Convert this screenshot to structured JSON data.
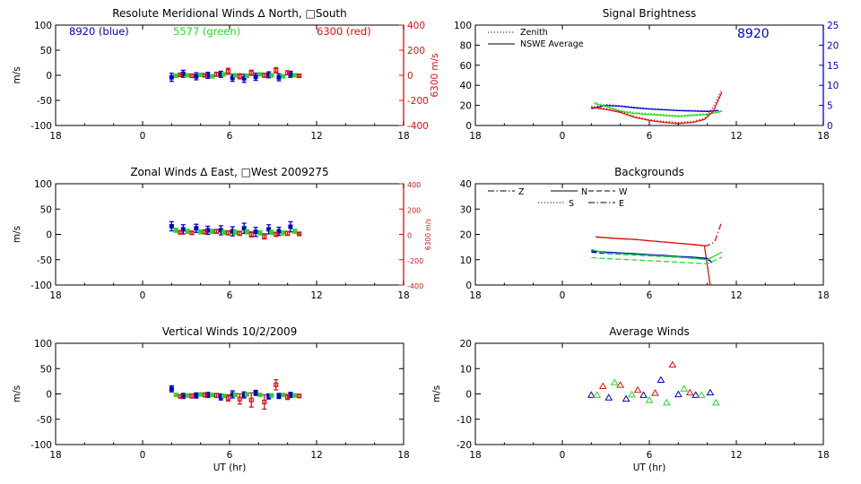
{
  "colors": {
    "blue": "#0000cc",
    "green": "#22dd22",
    "red": "#dd1111",
    "black": "#000000"
  },
  "chart_data": [
    {
      "id": "meridional",
      "type": "scatter",
      "title": "Resolute Meridional Winds ∆ North, □South",
      "ylabel": "m/s",
      "ylabel_right": "6300 m/s",
      "xlim": [
        18,
        42
      ],
      "ylim": [
        -100,
        100
      ],
      "ylim_right": [
        -400,
        400
      ],
      "x_ticks": [
        "18",
        "0",
        "6",
        "12",
        "18"
      ],
      "y_ticks": [
        "100",
        "50",
        "0",
        "-50",
        "-100"
      ],
      "y_ticks_right": [
        "400",
        "200",
        "0",
        "-200",
        "-400"
      ],
      "legend": {
        "blue": "8920 (blue)",
        "green": "5577 (green)",
        "red": "6300 (red)"
      },
      "series": [
        {
          "color": "blue",
          "x": [
            26.0,
            26.8,
            27.7,
            28.5,
            29.4,
            30.2,
            31.0,
            31.8,
            32.7,
            33.4,
            34.2
          ],
          "y": [
            -4,
            3,
            -2,
            0,
            2,
            -5,
            -6,
            -3,
            1,
            -4,
            2
          ],
          "err": [
            8,
            7,
            7,
            6,
            6,
            7,
            8,
            7,
            6,
            7,
            6
          ]
        },
        {
          "color": "green",
          "x": [
            26.3,
            27.1,
            28.0,
            28.8,
            29.6,
            30.4,
            31.2,
            32.1,
            32.9,
            33.7,
            34.5
          ],
          "y": [
            -1,
            0,
            1,
            -2,
            2,
            0,
            -1,
            2,
            0,
            -2,
            0
          ],
          "err": [
            3,
            3,
            3,
            3,
            3,
            3,
            3,
            3,
            3,
            3,
            3
          ]
        },
        {
          "color": "red",
          "x": [
            26.6,
            27.4,
            28.3,
            29.1,
            29.9,
            30.7,
            31.5,
            32.4,
            33.2,
            34.0,
            34.8
          ],
          "y": [
            1,
            -1,
            0,
            2,
            8,
            -2,
            5,
            0,
            10,
            5,
            -1
          ],
          "err": [
            3,
            3,
            3,
            4,
            6,
            5,
            5,
            4,
            5,
            4,
            2
          ]
        }
      ]
    },
    {
      "id": "zonal",
      "type": "scatter",
      "title": "Zonal Winds ∆ East, □West 2009275",
      "ylabel": "m/s",
      "ylabel_right": "6300 m/s",
      "xlim": [
        18,
        42
      ],
      "ylim": [
        -100,
        100
      ],
      "ylim_right": [
        -400,
        400
      ],
      "x_ticks": [
        "18",
        "0",
        "6",
        "12",
        "18"
      ],
      "y_ticks": [
        "100",
        "50",
        "0",
        "-50",
        "-100"
      ],
      "y_ticks_right": [
        "400",
        "200",
        "0",
        "-200",
        "-400"
      ],
      "series": [
        {
          "color": "blue",
          "x": [
            26.0,
            26.8,
            27.7,
            28.5,
            29.4,
            30.2,
            31.0,
            31.8,
            32.7,
            33.4,
            34.2
          ],
          "y": [
            16,
            10,
            12,
            8,
            8,
            6,
            12,
            5,
            10,
            6,
            15
          ],
          "err": [
            9,
            9,
            8,
            8,
            9,
            9,
            10,
            9,
            9,
            8,
            10
          ]
        },
        {
          "color": "green",
          "x": [
            26.3,
            27.1,
            28.0,
            28.8,
            29.6,
            30.4,
            31.2,
            32.1,
            32.9,
            33.7,
            34.5
          ],
          "y": [
            8,
            6,
            5,
            6,
            4,
            4,
            5,
            3,
            4,
            3,
            6
          ],
          "err": [
            4,
            4,
            4,
            4,
            4,
            4,
            4,
            4,
            4,
            4,
            4
          ]
        },
        {
          "color": "red",
          "x": [
            26.6,
            27.4,
            28.3,
            29.1,
            29.9,
            30.7,
            31.5,
            32.4,
            33.2,
            34.0,
            34.8
          ],
          "y": [
            4,
            3,
            5,
            6,
            3,
            2,
            0,
            -4,
            0,
            2,
            1
          ],
          "err": [
            3,
            3,
            4,
            4,
            4,
            4,
            5,
            5,
            4,
            4,
            2
          ]
        }
      ]
    },
    {
      "id": "vertical",
      "type": "scatter",
      "title": "Vertical Winds 10/2/2009",
      "ylabel": "m/s",
      "xlabel": "UT (hr)",
      "xlim": [
        18,
        42
      ],
      "ylim": [
        -100,
        100
      ],
      "x_ticks": [
        "18",
        "0",
        "6",
        "12",
        "18"
      ],
      "y_ticks": [
        "100",
        "50",
        "0",
        "-50",
        "-100"
      ],
      "series": [
        {
          "color": "blue",
          "x": [
            26.0,
            26.8,
            27.7,
            28.5,
            29.4,
            30.2,
            31.0,
            31.8,
            32.7,
            33.4,
            34.2
          ],
          "y": [
            10,
            -4,
            -3,
            -2,
            -6,
            -1,
            -2,
            2,
            -5,
            -4,
            -2
          ],
          "err": [
            6,
            5,
            5,
            5,
            6,
            7,
            6,
            5,
            5,
            5,
            5
          ]
        },
        {
          "color": "green",
          "x": [
            26.3,
            27.1,
            28.0,
            28.8,
            29.6,
            30.4,
            31.2,
            32.1,
            32.9,
            33.7,
            34.5
          ],
          "y": [
            -2,
            -3,
            -1,
            -2,
            -4,
            -2,
            -1,
            -2,
            -3,
            -2,
            -3
          ],
          "err": [
            3,
            3,
            3,
            3,
            3,
            3,
            3,
            3,
            3,
            3,
            3
          ]
        },
        {
          "color": "red",
          "x": [
            26.6,
            27.4,
            28.3,
            29.1,
            29.9,
            30.7,
            31.5,
            32.4,
            33.2,
            34.0,
            34.8
          ],
          "y": [
            -5,
            -4,
            -2,
            -3,
            -8,
            -10,
            -12,
            -16,
            18,
            -6,
            -4
          ],
          "err": [
            3,
            4,
            4,
            4,
            6,
            10,
            14,
            14,
            10,
            5,
            3
          ]
        }
      ]
    },
    {
      "id": "brightness",
      "type": "line",
      "title": "Signal Brightness",
      "xlim": [
        18,
        42
      ],
      "ylim": [
        0,
        100
      ],
      "ylim_right": [
        0,
        25
      ],
      "x_ticks": [
        "18",
        "0",
        "6",
        "12",
        "18"
      ],
      "y_ticks": [
        "100",
        "80",
        "60",
        "40",
        "20",
        "0"
      ],
      "y_ticks_right": [
        "25",
        "20",
        "15",
        "10",
        "5",
        "0"
      ],
      "annotation": "8920",
      "legend": {
        "zenith": "Zenith",
        "average": "NSWE Average"
      },
      "series": [
        {
          "color": "blue",
          "style": "solid",
          "axis": "right",
          "x": [
            26,
            27,
            28,
            29,
            30,
            31,
            32,
            33,
            34,
            34.8
          ],
          "y": [
            4.2,
            5,
            4.8,
            4.4,
            4.1,
            3.9,
            3.7,
            3.6,
            3.5,
            3.7
          ]
        },
        {
          "color": "blue",
          "style": "dotted",
          "axis": "right",
          "x": [
            26,
            27,
            28,
            29,
            30,
            31,
            32,
            33,
            34,
            34.8
          ],
          "y": [
            4.5,
            5.2,
            4.9,
            4.5,
            4.2,
            4.0,
            3.8,
            3.7,
            3.6,
            3.8
          ]
        },
        {
          "color": "green",
          "style": "solid",
          "axis": "left",
          "x": [
            26.2,
            27,
            28,
            29,
            30,
            31,
            32,
            33,
            34,
            35
          ],
          "y": [
            22,
            19,
            14,
            12,
            11,
            10,
            9,
            10,
            11,
            14
          ]
        },
        {
          "color": "green",
          "style": "dotted",
          "axis": "left",
          "x": [
            26.2,
            27,
            28,
            29,
            30,
            31,
            32,
            33,
            34,
            35
          ],
          "y": [
            23,
            20,
            15,
            13,
            12,
            11,
            10,
            11,
            12,
            15
          ]
        },
        {
          "color": "red",
          "style": "solid",
          "axis": "left",
          "x": [
            26,
            27,
            28,
            29,
            30,
            31,
            32,
            33,
            33.8,
            34.4,
            35
          ],
          "y": [
            18,
            16,
            13,
            8,
            5,
            3,
            2,
            3,
            6,
            14,
            33
          ]
        },
        {
          "color": "red",
          "style": "dotted",
          "axis": "left",
          "x": [
            26,
            27,
            28,
            29,
            30,
            31,
            32,
            33,
            33.8,
            34.4,
            35
          ],
          "y": [
            19,
            17,
            14,
            9,
            6,
            4,
            3,
            4,
            7,
            18,
            36
          ]
        }
      ]
    },
    {
      "id": "backgrounds",
      "type": "line",
      "title": "Backgrounds",
      "xlim": [
        18,
        42
      ],
      "ylim": [
        0,
        40
      ],
      "x_ticks": [
        "18",
        "0",
        "6",
        "12",
        "18"
      ],
      "y_ticks": [
        "40",
        "30",
        "20",
        "10",
        "0"
      ],
      "legend": {
        "z": "Z",
        "n": "N",
        "w": "W",
        "s": "S",
        "e": "E"
      },
      "series": [
        {
          "color": "red",
          "style": "dotdash",
          "x": [
            26.3,
            27,
            28,
            29,
            30,
            31,
            32,
            33,
            34,
            34.5,
            35
          ],
          "y": [
            19,
            18.7,
            18.3,
            18,
            17.5,
            17,
            16.5,
            16,
            15.5,
            17,
            25
          ]
        },
        {
          "color": "red",
          "style": "solid",
          "x": [
            26.3,
            27,
            28,
            29,
            30,
            31,
            32,
            33,
            33.8,
            34.2
          ],
          "y": [
            19,
            18.7,
            18.3,
            18,
            17.5,
            17,
            16.5,
            16,
            15.5,
            0
          ]
        },
        {
          "color": "blue",
          "style": "solid",
          "x": [
            26,
            27,
            28,
            29,
            30,
            31,
            32,
            33,
            34,
            34.3
          ],
          "y": [
            13.5,
            13,
            12.7,
            12.4,
            12,
            11.7,
            11.3,
            11,
            10.5,
            9
          ]
        },
        {
          "color": "blue",
          "style": "dashed",
          "x": [
            26,
            27,
            28,
            29,
            30,
            31,
            32,
            33,
            34,
            34.3
          ],
          "y": [
            13,
            12.5,
            12.2,
            11.9,
            11.6,
            11.3,
            11,
            10.6,
            10.2,
            8.8
          ]
        },
        {
          "color": "green",
          "style": "solid",
          "x": [
            26,
            27,
            28,
            29,
            30,
            31,
            32,
            33,
            34,
            35
          ],
          "y": [
            14,
            12.6,
            12.4,
            12,
            11.7,
            11.4,
            11,
            10.6,
            10,
            13
          ]
        },
        {
          "color": "green",
          "style": "dashed",
          "x": [
            26,
            27,
            28,
            29,
            30,
            31,
            32,
            33,
            34,
            35
          ],
          "y": [
            10.8,
            10.4,
            10.2,
            9.9,
            9.6,
            9.3,
            9,
            8.7,
            8.4,
            11
          ]
        }
      ]
    },
    {
      "id": "average",
      "type": "scatter",
      "title": "Average Winds",
      "ylabel": "m/s",
      "xlabel": "UT (hr)",
      "xlim": [
        18,
        42
      ],
      "ylim": [
        -20,
        20
      ],
      "x_ticks": [
        "18",
        "0",
        "6",
        "12",
        "18"
      ],
      "y_ticks": [
        "20",
        "10",
        "0",
        "-10",
        "-20"
      ],
      "series": [
        {
          "color": "blue",
          "marker": "triangle",
          "x": [
            26,
            27.2,
            28.4,
            29.6,
            30.8,
            32,
            33.2,
            34.2
          ],
          "y": [
            -0.5,
            -1.5,
            -2,
            -0.5,
            5.5,
            -0.2,
            -0.5,
            0.5
          ]
        },
        {
          "color": "green",
          "marker": "triangle",
          "x": [
            26.4,
            27.6,
            28.8,
            30,
            31.2,
            32.4,
            33.6,
            34.6
          ],
          "y": [
            -0.5,
            4.5,
            -0.3,
            -2.5,
            -3.5,
            2,
            -0.5,
            -3.5
          ]
        },
        {
          "color": "red",
          "marker": "triangle",
          "x": [
            26.8,
            28,
            29.2,
            30.4,
            31.6,
            32.8
          ],
          "y": [
            3,
            3.5,
            1.5,
            0.3,
            11.5,
            0.5
          ]
        }
      ]
    }
  ]
}
